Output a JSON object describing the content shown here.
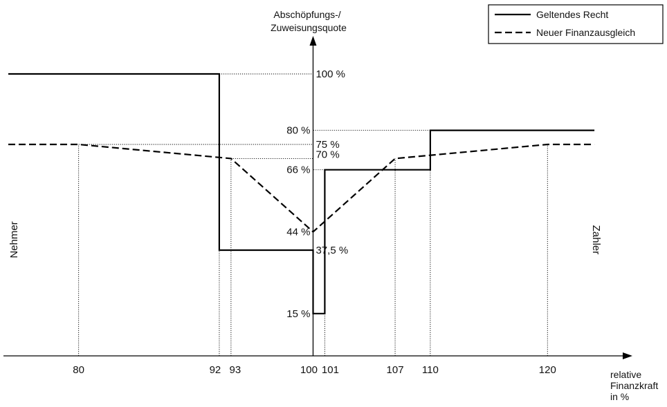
{
  "chart_data": {
    "type": "line",
    "title": "",
    "ylabel_lines": [
      "Abschöpfungs-/",
      "Zuweisungsquote"
    ],
    "xlabel_lines": [
      "relative",
      "Finanzkraft",
      "in %"
    ],
    "left_side_label": "Nehmer",
    "right_side_label": "Zahler",
    "xlim": [
      74,
      125
    ],
    "ylim": [
      0,
      100
    ],
    "x_ticks": [
      {
        "value": 80,
        "label": "80"
      },
      {
        "value": 92,
        "label": "92"
      },
      {
        "value": 93,
        "label": "93"
      },
      {
        "value": 100,
        "label": "100"
      },
      {
        "value": 101,
        "label": "101"
      },
      {
        "value": 107,
        "label": "107"
      },
      {
        "value": 110,
        "label": "110"
      },
      {
        "value": 120,
        "label": "120"
      }
    ],
    "y_labels": [
      {
        "value": 100,
        "label": "100 %",
        "side": "right"
      },
      {
        "value": 80,
        "label": "80 %",
        "side": "left"
      },
      {
        "value": 75,
        "label": "75 %",
        "side": "right"
      },
      {
        "value": 70,
        "label": "70 %",
        "side": "right"
      },
      {
        "value": 66,
        "label": "66 %",
        "side": "left"
      },
      {
        "value": 44,
        "label": "44 %",
        "side": "left"
      },
      {
        "value": 37.5,
        "label": "37,5 %",
        "side": "right"
      },
      {
        "value": 15,
        "label": "15 %",
        "side": "left"
      }
    ],
    "series": [
      {
        "name": "Geltendes Recht",
        "style": "solid",
        "points": [
          [
            74,
            100
          ],
          [
            92,
            100
          ],
          [
            92,
            37.5
          ],
          [
            100,
            37.5
          ],
          [
            100,
            15
          ],
          [
            101,
            15
          ],
          [
            101,
            66
          ],
          [
            110,
            66
          ],
          [
            110,
            80
          ],
          [
            124,
            80
          ]
        ]
      },
      {
        "name": "Neuer Finanzausgleich",
        "style": "dashed",
        "points": [
          [
            74,
            75
          ],
          [
            80,
            75
          ],
          [
            93,
            70
          ],
          [
            100,
            44
          ],
          [
            107,
            70
          ],
          [
            120,
            75
          ],
          [
            124,
            75
          ]
        ]
      }
    ],
    "guides": [
      {
        "points": [
          [
            80,
            0
          ],
          [
            80,
            75
          ]
        ]
      },
      {
        "points": [
          [
            92,
            0
          ],
          [
            92,
            37.5
          ]
        ]
      },
      {
        "points": [
          [
            93,
            0
          ],
          [
            93,
            70
          ]
        ]
      },
      {
        "points": [
          [
            93,
            70
          ],
          [
            100,
            70
          ]
        ]
      },
      {
        "points": [
          [
            101,
            0
          ],
          [
            101,
            15
          ]
        ]
      },
      {
        "points": [
          [
            107,
            0
          ],
          [
            107,
            70
          ]
        ]
      },
      {
        "points": [
          [
            110,
            0
          ],
          [
            110,
            66
          ]
        ]
      },
      {
        "points": [
          [
            120,
            0
          ],
          [
            120,
            75
          ]
        ]
      },
      {
        "points": [
          [
            92,
            100
          ],
          [
            100,
            100
          ]
        ]
      },
      {
        "points": [
          [
            80,
            75
          ],
          [
            100,
            75
          ]
        ]
      },
      {
        "points": [
          [
            101,
            66
          ],
          [
            100,
            66
          ]
        ]
      },
      {
        "points": [
          [
            110,
            80
          ],
          [
            100,
            80
          ]
        ]
      }
    ],
    "legend": {
      "placement": "top-right",
      "entries": [
        {
          "name": "Geltendes Recht",
          "style": "solid"
        },
        {
          "name": "Neuer Finanzausgleich",
          "style": "dashed"
        }
      ]
    },
    "line_color": "#000000"
  }
}
